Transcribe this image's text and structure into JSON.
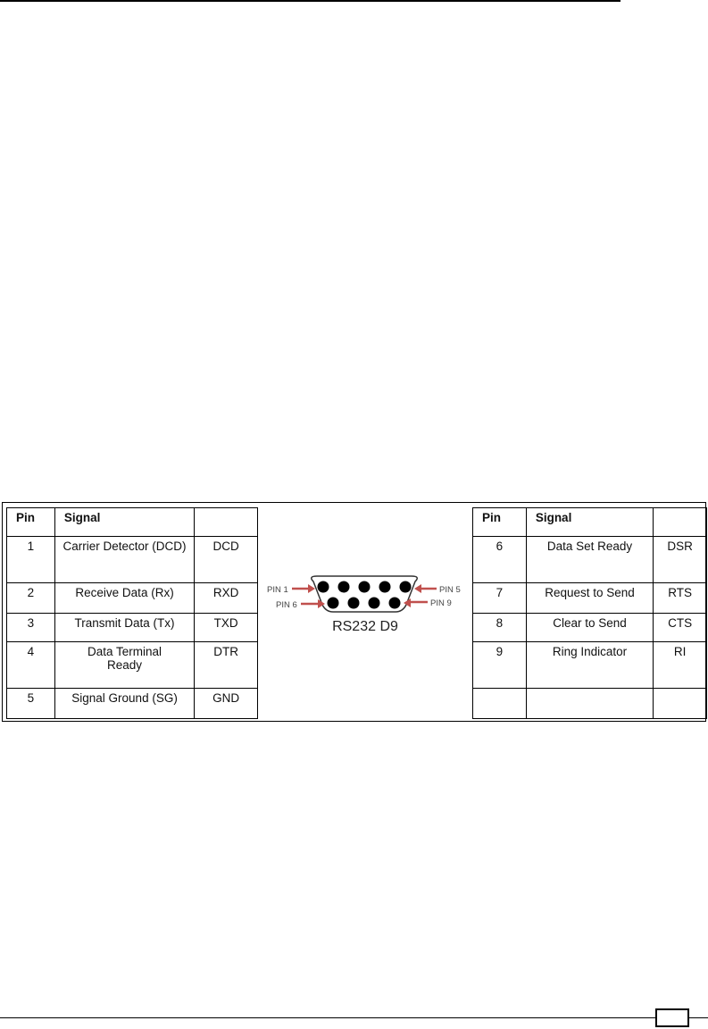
{
  "figure": {
    "left_table": {
      "headers": [
        "Pin",
        "Signal",
        ""
      ],
      "rows": [
        [
          "1",
          "Carrier Detector (DCD)",
          "DCD"
        ],
        [
          "2",
          "Receive Data (Rx)",
          "RXD"
        ],
        [
          "3",
          "Transmit Data (Tx)",
          "TXD"
        ],
        [
          "4",
          "Data Terminal Ready",
          "DTR"
        ],
        [
          "5",
          "Signal Ground (SG)",
          "GND"
        ]
      ]
    },
    "right_table": {
      "headers": [
        "Pin",
        "Signal",
        ""
      ],
      "rows": [
        [
          "6",
          "Data Set Ready",
          "DSR"
        ],
        [
          "7",
          "Request to Send",
          "RTS"
        ],
        [
          "8",
          "Clear to Send",
          "CTS"
        ],
        [
          "9",
          "Ring Indicator",
          "RI"
        ],
        [
          "",
          "",
          ""
        ]
      ]
    },
    "connector": {
      "title": "RS232 D9",
      "pin1_label": "PIN 1",
      "pin5_label": "PIN 5",
      "pin6_label": "PIN 6",
      "pin9_label": "PIN 9",
      "arrow_color": "#c0504d"
    }
  },
  "footer": {
    "page_number": ""
  }
}
